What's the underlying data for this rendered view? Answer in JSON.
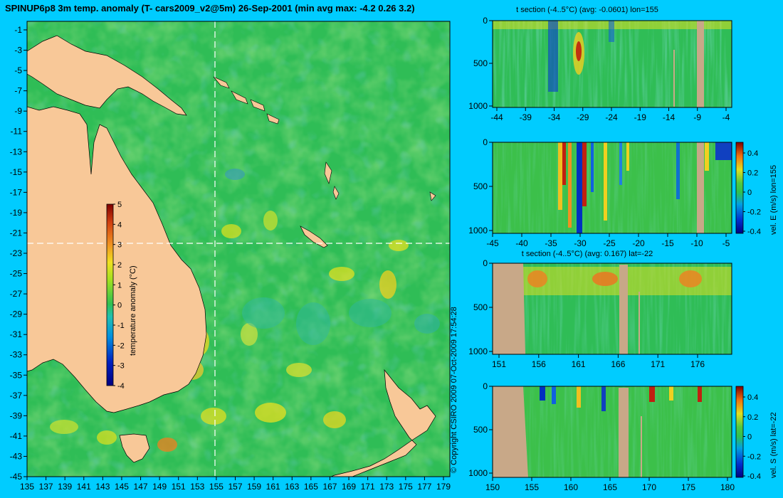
{
  "colors": {
    "background": "#00ccff",
    "land": "#f8c898",
    "section_land": "#c8a888",
    "ocean_base": "#2fbd56"
  },
  "main_map": {
    "title": "SPINUP6p8 3m temp. anomaly (T- cars2009_v2@5m) 26-Sep-2001 (min avg max: -4.2 0.26 3.2)",
    "x_ticks": [
      "135",
      "137",
      "139",
      "141",
      "143",
      "145",
      "147",
      "149",
      "151",
      "153",
      "155",
      "157",
      "159",
      "161",
      "163",
      "165",
      "167",
      "169",
      "171",
      "173",
      "175",
      "177",
      "179"
    ],
    "y_ticks": [
      "-1",
      "-3",
      "-5",
      "-7",
      "-9",
      "-11",
      "-13",
      "-15",
      "-17",
      "-19",
      "-21",
      "-23",
      "-25",
      "-27",
      "-29",
      "-31",
      "-33",
      "-35",
      "-37",
      "-39",
      "-41",
      "-43",
      "-45"
    ],
    "colorbar": {
      "label": "temperature anomaly (°C)",
      "ticks": [
        "5",
        "4",
        "3",
        "2",
        "1",
        "0",
        "-1",
        "-2",
        "-3",
        "-4"
      ]
    },
    "copyright": "© Copyright CSIRO 2009   07-Oct-2009 17:54:28"
  },
  "chart_data": [
    {
      "type": "heatmap",
      "title": "SPINUP6p8 3m temp. anomaly (T- cars2009_v2@5m) 26-Sep-2001 (min avg max: -4.2 0.26 3.2)",
      "xlim": [
        135,
        180
      ],
      "ylim": [
        -45,
        0
      ],
      "stats": {
        "min": -4.2,
        "avg": 0.26,
        "max": 3.2
      },
      "colorbar_range": [
        -4,
        5
      ],
      "section_lines": {
        "lon": 155,
        "lat": -22
      }
    },
    {
      "type": "heatmap",
      "title": "t section (-4..5°C) (avg: -0.0601) lon=155",
      "x_ticks": [
        "-44",
        "-39",
        "-34",
        "-29",
        "-24",
        "-19",
        "-14",
        "-9",
        "-4"
      ],
      "y_ticks": [
        "0",
        "500",
        "1000"
      ],
      "xlim": [
        -45,
        -1
      ],
      "ylim": [
        1050,
        0
      ]
    },
    {
      "type": "heatmap",
      "title": "",
      "x_ticks": [
        "-45",
        "-40",
        "-35",
        "-30",
        "-25",
        "-20",
        "-15",
        "-10",
        "-5"
      ],
      "y_ticks": [
        "0",
        "500",
        "1000"
      ],
      "colorbar_label": "vel. E (m/s) lon=155",
      "colorbar_ticks": [
        "0.4",
        "0.2",
        "0",
        "-0.2",
        "-0.4"
      ]
    },
    {
      "type": "heatmap",
      "title": "t section (-4..5°C) (avg: 0.167) lat=-22",
      "x_ticks": [
        "151",
        "156",
        "161",
        "166",
        "171",
        "176"
      ],
      "y_ticks": [
        "0",
        "500",
        "1000"
      ]
    },
    {
      "type": "heatmap",
      "title": "",
      "x_ticks": [
        "150",
        "155",
        "160",
        "165",
        "170",
        "175",
        "180"
      ],
      "y_ticks": [
        "0",
        "500",
        "1000"
      ],
      "colorbar_label": "vel. S (m/s) lat=-22",
      "colorbar_ticks": [
        "0.4",
        "0.2",
        "0",
        "-0.2",
        "-0.4"
      ]
    }
  ]
}
